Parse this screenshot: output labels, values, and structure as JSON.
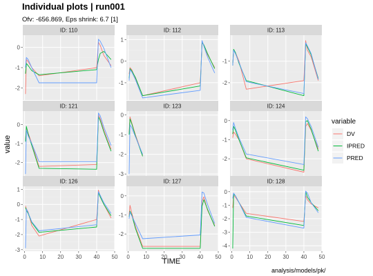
{
  "title": "Individual plots | run001",
  "subtitle": "Ofv: -656.869, Eps shrink: 6.7 [1]",
  "caption": "analysis/models/pk/",
  "colors": {
    "DV": "#F8766D",
    "IPRED": "#00BA38",
    "PRED": "#619CFF",
    "panel_bg": "#EBEBEB",
    "strip_bg": "#D9D9D9",
    "grid_major": "#FFFFFF",
    "grid_minor": "#F2F2F2"
  },
  "chart_data": {
    "type": "line",
    "facet": "ID",
    "xlabel": "TIME",
    "ylabel": "value",
    "xlim": [
      -1,
      50
    ],
    "x_ticks": [
      0,
      10,
      20,
      30,
      40,
      50
    ],
    "grid": true,
    "legend": {
      "title": "variable",
      "position": "right",
      "entries": [
        "DV",
        "IPRED",
        "PRED"
      ]
    },
    "panels": [
      {
        "id": "ID: 110",
        "ylim": [
          -2.6,
          0.6
        ],
        "y_ticks": [
          0,
          -1,
          -2
        ],
        "series": [
          {
            "name": "DV",
            "x": [
              0.5,
              1,
              2,
              4,
              8,
              40,
              41,
              42,
              44,
              48
            ],
            "y": [
              -2.3,
              -0.6,
              -0.7,
              -1.0,
              -1.4,
              -1.0,
              0.25,
              0.1,
              -0.4,
              -0.9
            ]
          },
          {
            "name": "IPRED",
            "x": [
              0.5,
              1,
              2,
              4,
              8,
              40,
              41,
              42,
              44,
              48
            ],
            "y": [
              -1.3,
              -0.8,
              -0.9,
              -1.15,
              -1.35,
              -1.1,
              -0.6,
              -0.3,
              -0.2,
              -0.6
            ]
          },
          {
            "name": "PRED",
            "x": [
              0.5,
              1,
              2,
              4,
              8,
              40,
              41,
              42,
              44,
              48
            ],
            "y": [
              -1.0,
              -0.5,
              -0.6,
              -1.0,
              -1.75,
              -1.75,
              0.4,
              0.3,
              -0.05,
              -1.0
            ]
          }
        ]
      },
      {
        "id": "ID: 112",
        "ylim": [
          -1.8,
          1.2
        ],
        "y_ticks": [
          1,
          0,
          -1
        ],
        "series": [
          {
            "name": "DV",
            "x": [
              0.5,
              1,
              2,
              4,
              8,
              40,
              41,
              42,
              44,
              48
            ],
            "y": [
              -0.6,
              -0.3,
              -0.4,
              -0.8,
              -1.6,
              -1.0,
              0.9,
              0.75,
              0.3,
              -0.3
            ]
          },
          {
            "name": "IPRED",
            "x": [
              0.5,
              1,
              2,
              4,
              8,
              40,
              41,
              42,
              44,
              48
            ],
            "y": [
              -0.8,
              -0.35,
              -0.45,
              -0.75,
              -1.6,
              -1.15,
              0.85,
              0.75,
              0.35,
              -0.35
            ]
          },
          {
            "name": "PRED",
            "x": [
              0.5,
              1,
              2,
              4,
              8,
              40,
              41,
              42,
              44,
              48
            ],
            "y": [
              -0.9,
              -0.4,
              -0.5,
              -0.85,
              -1.7,
              -1.35,
              0.95,
              0.7,
              0.2,
              -0.55
            ]
          }
        ]
      },
      {
        "id": "ID: 113",
        "ylim": [
          -2.8,
          0.2
        ],
        "y_ticks": [
          -1,
          -2
        ],
        "series": [
          {
            "name": "DV",
            "x": [
              0.5,
              1,
              2,
              4,
              8,
              40,
              41,
              42,
              44,
              48
            ],
            "y": [
              -1.2,
              -0.5,
              -0.6,
              -1.0,
              -2.3,
              -1.9,
              -0.05,
              -0.5,
              -0.8,
              -1.9
            ]
          },
          {
            "name": "IPRED",
            "x": [
              0.5,
              1,
              2,
              4,
              8,
              40,
              41,
              42,
              44,
              48
            ],
            "y": [
              -1.2,
              -0.45,
              -0.6,
              -1.1,
              -1.9,
              -2.6,
              -0.2,
              -0.35,
              -0.7,
              -1.8
            ]
          },
          {
            "name": "PRED",
            "x": [
              0.5,
              1,
              2,
              4,
              8,
              40,
              41,
              42,
              44,
              48
            ],
            "y": [
              -1.2,
              -0.5,
              -0.65,
              -1.05,
              -1.95,
              -2.5,
              -0.15,
              -0.3,
              -0.65,
              -1.85
            ]
          }
        ]
      },
      {
        "id": "ID: 121",
        "ylim": [
          -2.7,
          0.7
        ],
        "y_ticks": [
          0,
          -1,
          -2
        ],
        "series": [
          {
            "name": "DV",
            "x": [
              0.5,
              1,
              2,
              4,
              8,
              40,
              41,
              42,
              44,
              48
            ],
            "y": [
              -0.8,
              -0.2,
              -0.45,
              -1.0,
              -2.2,
              -2.1,
              0.5,
              0.3,
              -0.3,
              -1.3
            ]
          },
          {
            "name": "IPRED",
            "x": [
              0.5,
              1,
              2,
              4,
              8,
              40,
              41,
              42,
              44,
              48
            ],
            "y": [
              -0.9,
              -0.1,
              -0.5,
              -1.1,
              -2.3,
              -2.35,
              0.4,
              0.2,
              -0.4,
              -1.4
            ]
          },
          {
            "name": "PRED",
            "x": [
              0.5,
              1,
              2,
              4,
              8,
              40,
              41,
              42,
              44,
              48
            ],
            "y": [
              -2.6,
              -0.3,
              -0.6,
              -1.0,
              -1.95,
              -1.95,
              0.6,
              0.45,
              -0.15,
              -1.1
            ]
          }
        ]
      },
      {
        "id": "ID: 123",
        "ylim": [
          -3.1,
          0.2
        ],
        "y_ticks": [
          0,
          -1,
          -2,
          -3
        ],
        "series": [
          {
            "name": "DV",
            "x": [
              0.5,
              1,
              2,
              4,
              8
            ],
            "y": [
              -0.9,
              -0.1,
              -0.4,
              -1.0,
              -2.05
            ]
          },
          {
            "name": "IPRED",
            "x": [
              0.5,
              1,
              2,
              4,
              8
            ],
            "y": [
              -1.0,
              -0.2,
              -0.45,
              -1.05,
              -2.1
            ]
          },
          {
            "name": "PRED",
            "x": [
              0.5,
              1,
              2,
              4,
              8
            ],
            "y": [
              -3.0,
              -0.5,
              -0.65,
              -1.1,
              -2.0
            ]
          }
        ]
      },
      {
        "id": "ID: 124",
        "ylim": [
          -2.9,
          0.5
        ],
        "y_ticks": [
          0,
          -1,
          -2
        ],
        "series": [
          {
            "name": "DV",
            "x": [
              0.5,
              1,
              2,
              4,
              8,
              40,
              41,
              42,
              44,
              48
            ],
            "y": [
              -0.9,
              -0.6,
              -0.7,
              -1.0,
              -2.0,
              -2.7,
              -0.3,
              -0.15,
              -0.5,
              -1.5
            ]
          },
          {
            "name": "IPRED",
            "x": [
              0.5,
              1,
              2,
              4,
              8,
              40,
              41,
              42,
              44,
              48
            ],
            "y": [
              -0.7,
              -0.3,
              -0.5,
              -1.0,
              -1.95,
              -2.6,
              -0.05,
              0.0,
              -0.45,
              -1.6
            ]
          },
          {
            "name": "PRED",
            "x": [
              0.5,
              1,
              2,
              4,
              8,
              40,
              41,
              42,
              44,
              48
            ],
            "y": [
              -0.5,
              -0.1,
              -0.4,
              -0.9,
              -1.75,
              -2.3,
              0.2,
              0.1,
              -0.3,
              -1.4
            ]
          }
        ]
      },
      {
        "id": "ID: 126",
        "ylim": [
          -3.1,
          1.2
        ],
        "y_ticks": [
          1,
          0,
          -1,
          -2,
          -3
        ],
        "series": [
          {
            "name": "DV",
            "x": [
              0.5,
              1,
              2,
              4,
              8,
              40,
              41,
              42,
              44,
              48
            ],
            "y": [
              -0.1,
              -0.3,
              -0.5,
              -1.4,
              -2.1,
              -1.0,
              0.95,
              0.5,
              0.0,
              -0.9
            ]
          },
          {
            "name": "IPRED",
            "x": [
              0.5,
              1,
              2,
              4,
              8,
              40,
              41,
              42,
              44,
              48
            ],
            "y": [
              -0.2,
              -0.4,
              -0.6,
              -1.2,
              -1.85,
              -1.5,
              0.8,
              0.5,
              0.0,
              -0.75
            ]
          },
          {
            "name": "PRED",
            "x": [
              0.5,
              1,
              2,
              4,
              8,
              40,
              41,
              42,
              44,
              48
            ],
            "y": [
              -2.9,
              -0.3,
              -0.55,
              -1.15,
              -1.75,
              -1.35,
              0.85,
              0.6,
              0.1,
              -0.6
            ]
          }
        ]
      },
      {
        "id": "ID: 127",
        "ylim": [
          -2.9,
          0.5
        ],
        "y_ticks": [
          0,
          -1,
          -2
        ],
        "series": [
          {
            "name": "DV",
            "x": [
              0.5,
              1,
              2,
              4,
              8,
              40,
              41,
              42,
              44,
              48
            ],
            "y": [
              -1.0,
              -0.5,
              -0.9,
              -1.6,
              -2.65,
              -2.65,
              -0.3,
              -0.05,
              -0.75,
              -1.55
            ]
          },
          {
            "name": "IPRED",
            "x": [
              0.5,
              1,
              2,
              4,
              8,
              40,
              41,
              42,
              44,
              48
            ],
            "y": [
              -1.1,
              -0.8,
              -1.0,
              -1.7,
              -2.75,
              -2.75,
              -0.55,
              -0.2,
              -0.7,
              -1.6
            ]
          },
          {
            "name": "PRED",
            "x": [
              0.5,
              1,
              2,
              4,
              8,
              40,
              41,
              42,
              44,
              48
            ],
            "y": [
              -1.2,
              -0.85,
              -1.05,
              -1.45,
              -2.25,
              -2.05,
              0.2,
              0.15,
              -0.45,
              -1.45
            ]
          }
        ]
      },
      {
        "id": "ID: 128",
        "ylim": [
          -4.4,
          0.4
        ],
        "y_ticks": [
          0,
          -1,
          -2,
          -3,
          -4
        ],
        "series": [
          {
            "name": "DV",
            "x": [
              0.5,
              1,
              2,
              4,
              8,
              40,
              41,
              42,
              44,
              48
            ],
            "y": [
              -1.2,
              -0.3,
              -0.4,
              -0.8,
              -1.6,
              -2.2,
              -0.3,
              -0.6,
              -0.9,
              -1.2
            ]
          },
          {
            "name": "IPRED",
            "x": [
              0.5,
              1,
              2,
              4,
              8,
              40,
              41,
              42,
              44,
              48
            ],
            "y": [
              -4.2,
              -0.2,
              -0.3,
              -0.8,
              -1.8,
              -2.5,
              0.0,
              -0.4,
              -0.8,
              -1.4
            ]
          },
          {
            "name": "PRED",
            "x": [
              0.5,
              1,
              2,
              4,
              8,
              40,
              41,
              42,
              44,
              48
            ],
            "y": [
              -0.5,
              -0.1,
              -0.3,
              -0.8,
              -1.9,
              -2.7,
              0.05,
              -0.1,
              -0.8,
              -1.55
            ]
          }
        ]
      }
    ]
  }
}
